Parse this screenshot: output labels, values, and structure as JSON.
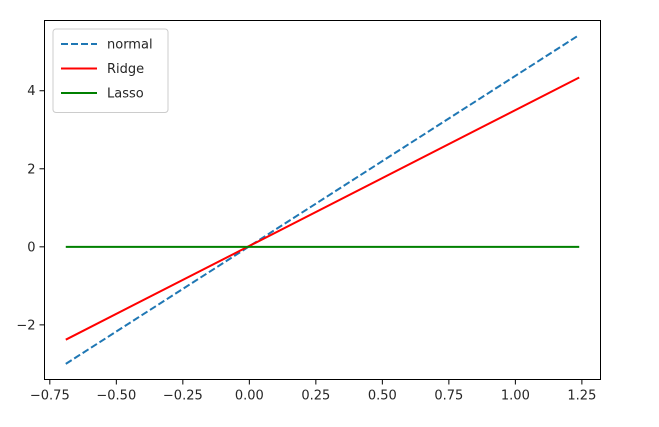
{
  "chart_data": {
    "type": "line",
    "title": "",
    "xlabel": "",
    "ylabel": "",
    "xlim": [
      -0.77,
      1.32
    ],
    "ylim": [
      -3.4,
      5.8
    ],
    "grid": false,
    "legend_position": "top-left",
    "x_ticks": [
      -0.75,
      -0.5,
      -0.25,
      0.0,
      0.25,
      0.5,
      0.75,
      1.0,
      1.25
    ],
    "x_tick_labels": [
      "−0.75",
      "−0.50",
      "−0.25",
      "0.00",
      "0.25",
      "0.50",
      "0.75",
      "1.00",
      "1.25"
    ],
    "y_ticks": [
      -2,
      0,
      2,
      4
    ],
    "y_tick_labels": [
      "−2",
      "0",
      "2",
      "4"
    ],
    "series": [
      {
        "name": "normal",
        "color": "#1f77b4",
        "style": "dashed",
        "x": [
          -0.69,
          1.24
        ],
        "y": [
          -3.0,
          5.43
        ]
      },
      {
        "name": "Ridge",
        "color": "#ff0000",
        "style": "solid",
        "x": [
          -0.69,
          1.24
        ],
        "y": [
          -2.38,
          4.34
        ]
      },
      {
        "name": "Lasso",
        "color": "#008000",
        "style": "solid",
        "x": [
          -0.69,
          1.24
        ],
        "y": [
          0.0,
          0.0
        ]
      }
    ]
  }
}
